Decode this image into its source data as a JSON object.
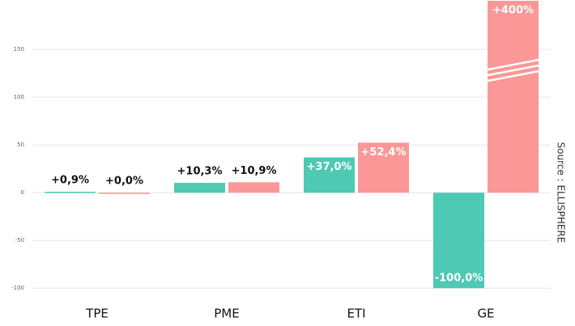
{
  "chart_data": {
    "type": "bar",
    "categories": [
      "TPE",
      "PME",
      "ETI",
      "GE"
    ],
    "series": [
      {
        "color": "#4ec9b4",
        "values": [
          0.9,
          10.3,
          37.0,
          -100.0
        ],
        "value_labels": [
          "+0,9%",
          "+10,3%",
          "+37,0%",
          "-100,0%"
        ]
      },
      {
        "color": "#fb9797",
        "values": [
          0.0,
          10.9,
          52.4,
          400
        ],
        "value_labels": [
          "+0,0%",
          "+10,9%",
          "+52,4%",
          "+400%"
        ]
      }
    ],
    "ylim": [
      -110,
      201
    ],
    "yticks": [
      -100,
      -50,
      0,
      50,
      100,
      150
    ],
    "grid": true,
    "source": "Source : ELLISPHERE"
  }
}
